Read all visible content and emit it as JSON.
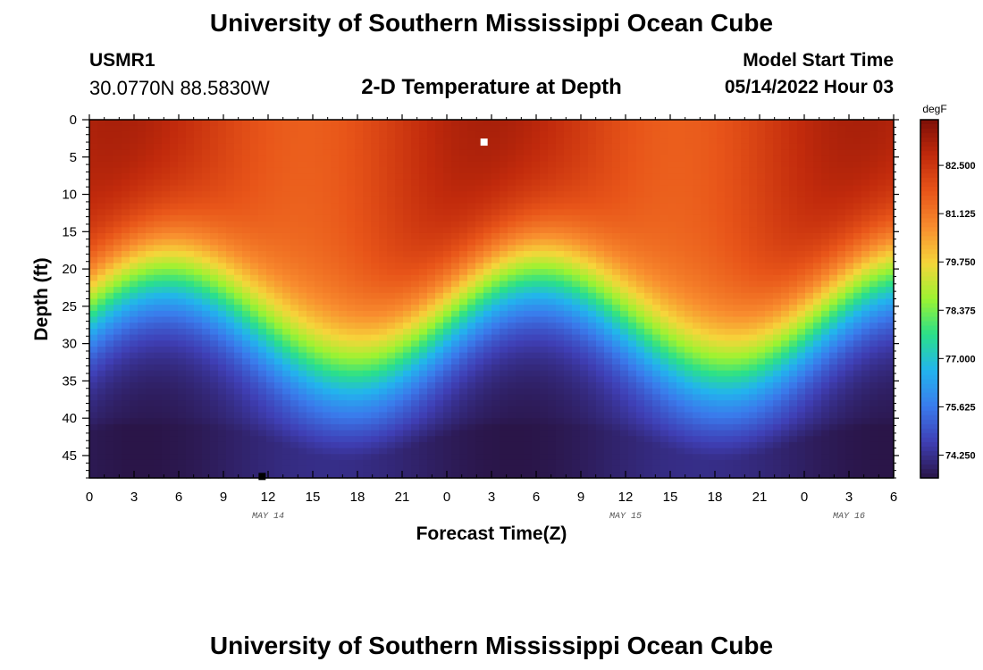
{
  "header": {
    "title": "University of Southern Mississippi Ocean Cube",
    "station_id": "USMR1",
    "coords": "30.0770N  88.5830W",
    "plot_title": "2-D Temperature at Depth",
    "model_label": "Model Start Time",
    "model_time": "05/14/2022 Hour 03"
  },
  "footer": {
    "title": "University of Southern Mississippi Ocean Cube"
  },
  "colors": {
    "colormap": [
      "#2a1548",
      "#3f3fb5",
      "#3a7bec",
      "#22b4ee",
      "#2ae08a",
      "#9cf331",
      "#f6d53a",
      "#f88c2e",
      "#e85519",
      "#c12a0c",
      "#7d0f07"
    ]
  },
  "chart_data": {
    "type": "heatmap",
    "xlabel": "Forecast Time(Z)",
    "ylabel": "Depth (ft)",
    "x_range": [
      0,
      54
    ],
    "y_range": [
      0,
      48
    ],
    "x_ticks": [
      0,
      3,
      6,
      9,
      12,
      15,
      18,
      21,
      24,
      27,
      30,
      33,
      36,
      39,
      42,
      45,
      48,
      51,
      54
    ],
    "x_tick_labels": [
      "0",
      "3",
      "6",
      "9",
      "12",
      "15",
      "18",
      "21",
      "0",
      "3",
      "6",
      "9",
      "12",
      "15",
      "18",
      "21",
      "0",
      "3",
      "6"
    ],
    "y_ticks": [
      0,
      5,
      10,
      15,
      20,
      25,
      30,
      35,
      40,
      45
    ],
    "y_tick_labels": [
      "0",
      "5",
      "10",
      "15",
      "20",
      "25",
      "30",
      "35",
      "40",
      "45"
    ],
    "date_labels": [
      {
        "x": 12,
        "label": "MAY 14"
      },
      {
        "x": 36,
        "label": "MAY 15"
      },
      {
        "x": 51,
        "label": "MAY 16"
      }
    ],
    "colorbar": {
      "unit": "degF",
      "vmin": 73.6,
      "vmax": 83.8,
      "ticks": [
        74.25,
        75.625,
        77.0,
        78.375,
        79.75,
        81.125,
        82.5
      ],
      "tick_labels": [
        "74.250",
        "75.625",
        "77.000",
        "78.375",
        "79.750",
        "81.125",
        "82.500"
      ]
    },
    "temperature_model": {
      "surface_base_degF": 82.4,
      "surface_amp_degF": 0.8,
      "bottom_base_degF": 73.9,
      "bottom_amp_degF": 0.3,
      "thermocline_depth_mean_ft": 27,
      "thermocline_depth_amp_ft": 6.5,
      "thermocline_width_ft": 9.5,
      "period_hr": 25,
      "phase_peak_hr": 5
    },
    "markers": [
      {
        "name": "max",
        "hour": 26.5,
        "depth_ft": 3.0,
        "color": "#ffffff"
      },
      {
        "name": "min",
        "hour": 11.6,
        "depth_ft": 47.8,
        "color": "#000000"
      }
    ]
  }
}
